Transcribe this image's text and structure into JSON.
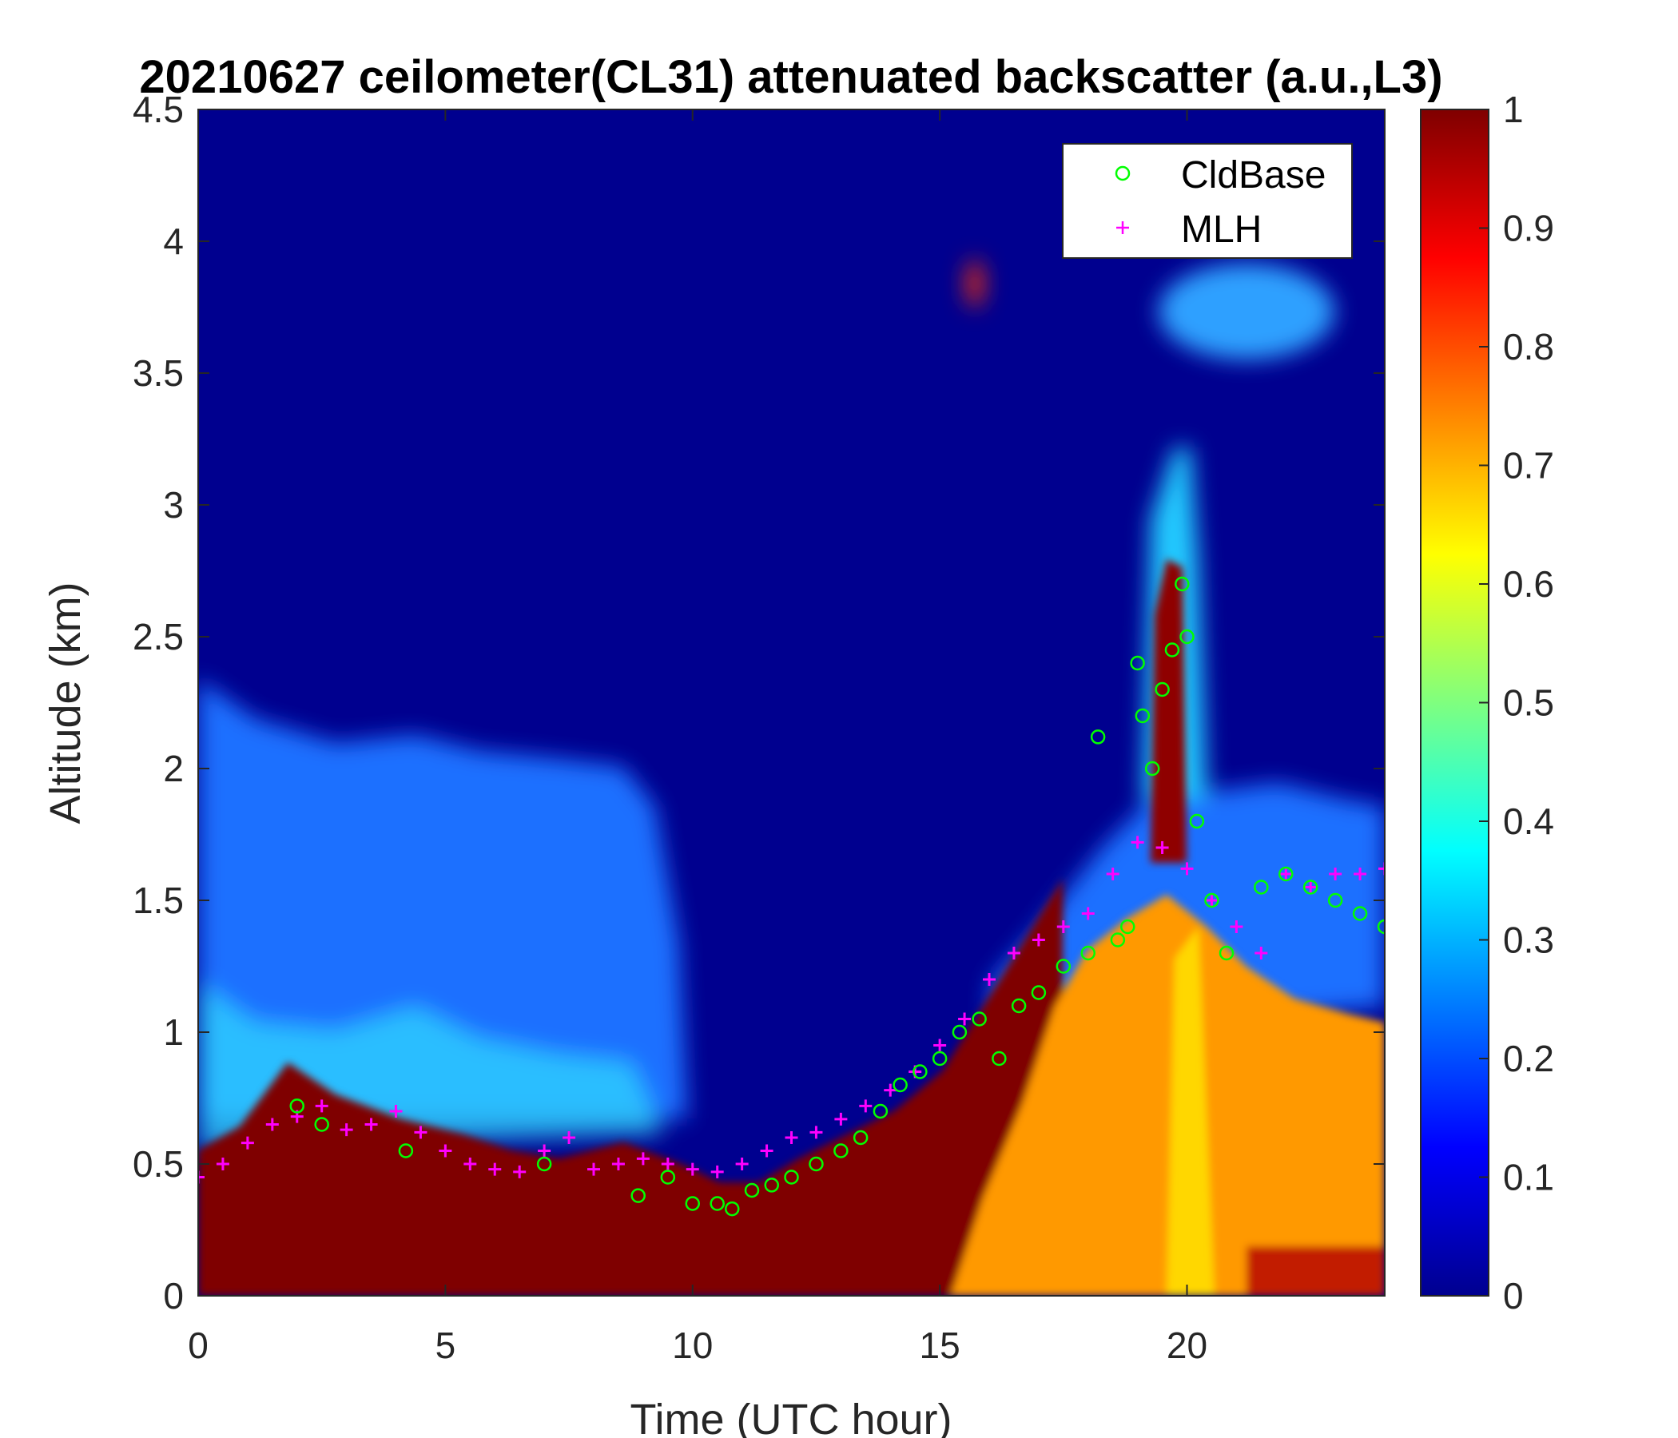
{
  "chart_data": {
    "type": "heatmap",
    "title": "20210627 ceilometer(CL31) attenuated backscatter (a.u.,L3)",
    "xlabel": "Time (UTC hour)",
    "ylabel": "Altitude (km)",
    "xlim": [
      0,
      24
    ],
    "ylim": [
      0,
      4.5
    ],
    "xticks": [
      "0",
      "5",
      "10",
      "15",
      "20"
    ],
    "yticks": [
      "0",
      "0.5",
      "1",
      "1.5",
      "2",
      "2.5",
      "3",
      "3.5",
      "4",
      "4.5"
    ],
    "colorbar": {
      "colormap": "jet",
      "clim": [
        0,
        1
      ],
      "ticks": [
        "0",
        "0.1",
        "0.2",
        "0.3",
        "0.4",
        "0.5",
        "0.6",
        "0.7",
        "0.8",
        "0.9",
        "1"
      ]
    },
    "legend": {
      "location": "top-right",
      "entries": [
        {
          "name": "CldBase",
          "marker": "circle",
          "color": "#00ff00"
        },
        {
          "name": "MLH",
          "marker": "plus",
          "color": "#ff00ff"
        }
      ]
    },
    "series": [
      {
        "name": "MLH",
        "x": [
          0.0,
          0.5,
          1.0,
          1.5,
          2.0,
          2.5,
          3.0,
          3.5,
          4.0,
          4.5,
          5.0,
          5.5,
          6.0,
          6.5,
          7.0,
          7.5,
          8.0,
          8.5,
          9.0,
          9.5,
          10.0,
          10.5,
          11.0,
          11.5,
          12.0,
          12.5,
          13.0,
          13.5,
          14.0,
          14.5,
          15.0,
          15.5,
          16.0,
          16.5,
          17.0,
          17.5,
          18.0,
          18.5,
          19.0,
          19.5,
          20.0,
          20.5,
          21.0,
          21.5,
          22.0,
          22.5,
          23.0,
          23.5,
          24.0
        ],
        "y": [
          0.45,
          0.5,
          0.58,
          0.65,
          0.68,
          0.72,
          0.63,
          0.65,
          0.7,
          0.62,
          0.55,
          0.5,
          0.48,
          0.47,
          0.55,
          0.6,
          0.48,
          0.5,
          0.52,
          0.5,
          0.48,
          0.47,
          0.5,
          0.55,
          0.6,
          0.62,
          0.67,
          0.72,
          0.78,
          0.85,
          0.95,
          1.05,
          1.2,
          1.3,
          1.35,
          1.4,
          1.45,
          1.6,
          1.72,
          1.7,
          1.62,
          1.5,
          1.4,
          1.3,
          1.6,
          1.55,
          1.6,
          1.6,
          1.62
        ]
      },
      {
        "name": "CldBase",
        "x": [
          2.0,
          2.5,
          4.2,
          7.0,
          8.9,
          9.5,
          10.0,
          10.5,
          10.8,
          11.2,
          11.6,
          12.0,
          12.5,
          13.0,
          13.4,
          13.8,
          14.2,
          14.6,
          15.0,
          15.4,
          15.8,
          16.2,
          16.6,
          17.0,
          17.5,
          18.0,
          18.2,
          18.6,
          18.8,
          19.0,
          19.1,
          19.3,
          19.5,
          19.7,
          19.9,
          20.0,
          20.2,
          20.5,
          20.8,
          21.5,
          22.0,
          22.5,
          23.0,
          23.5,
          24.0
        ],
        "y": [
          0.72,
          0.65,
          0.55,
          0.5,
          0.38,
          0.45,
          0.35,
          0.35,
          0.33,
          0.4,
          0.42,
          0.45,
          0.5,
          0.55,
          0.6,
          0.7,
          0.8,
          0.85,
          0.9,
          1.0,
          1.05,
          0.9,
          1.1,
          1.15,
          1.25,
          1.3,
          2.12,
          1.35,
          1.4,
          2.4,
          2.2,
          2.0,
          2.3,
          2.45,
          2.7,
          2.5,
          1.8,
          1.5,
          1.3,
          1.55,
          1.6,
          1.55,
          1.5,
          1.45,
          1.4
        ]
      }
    ]
  }
}
